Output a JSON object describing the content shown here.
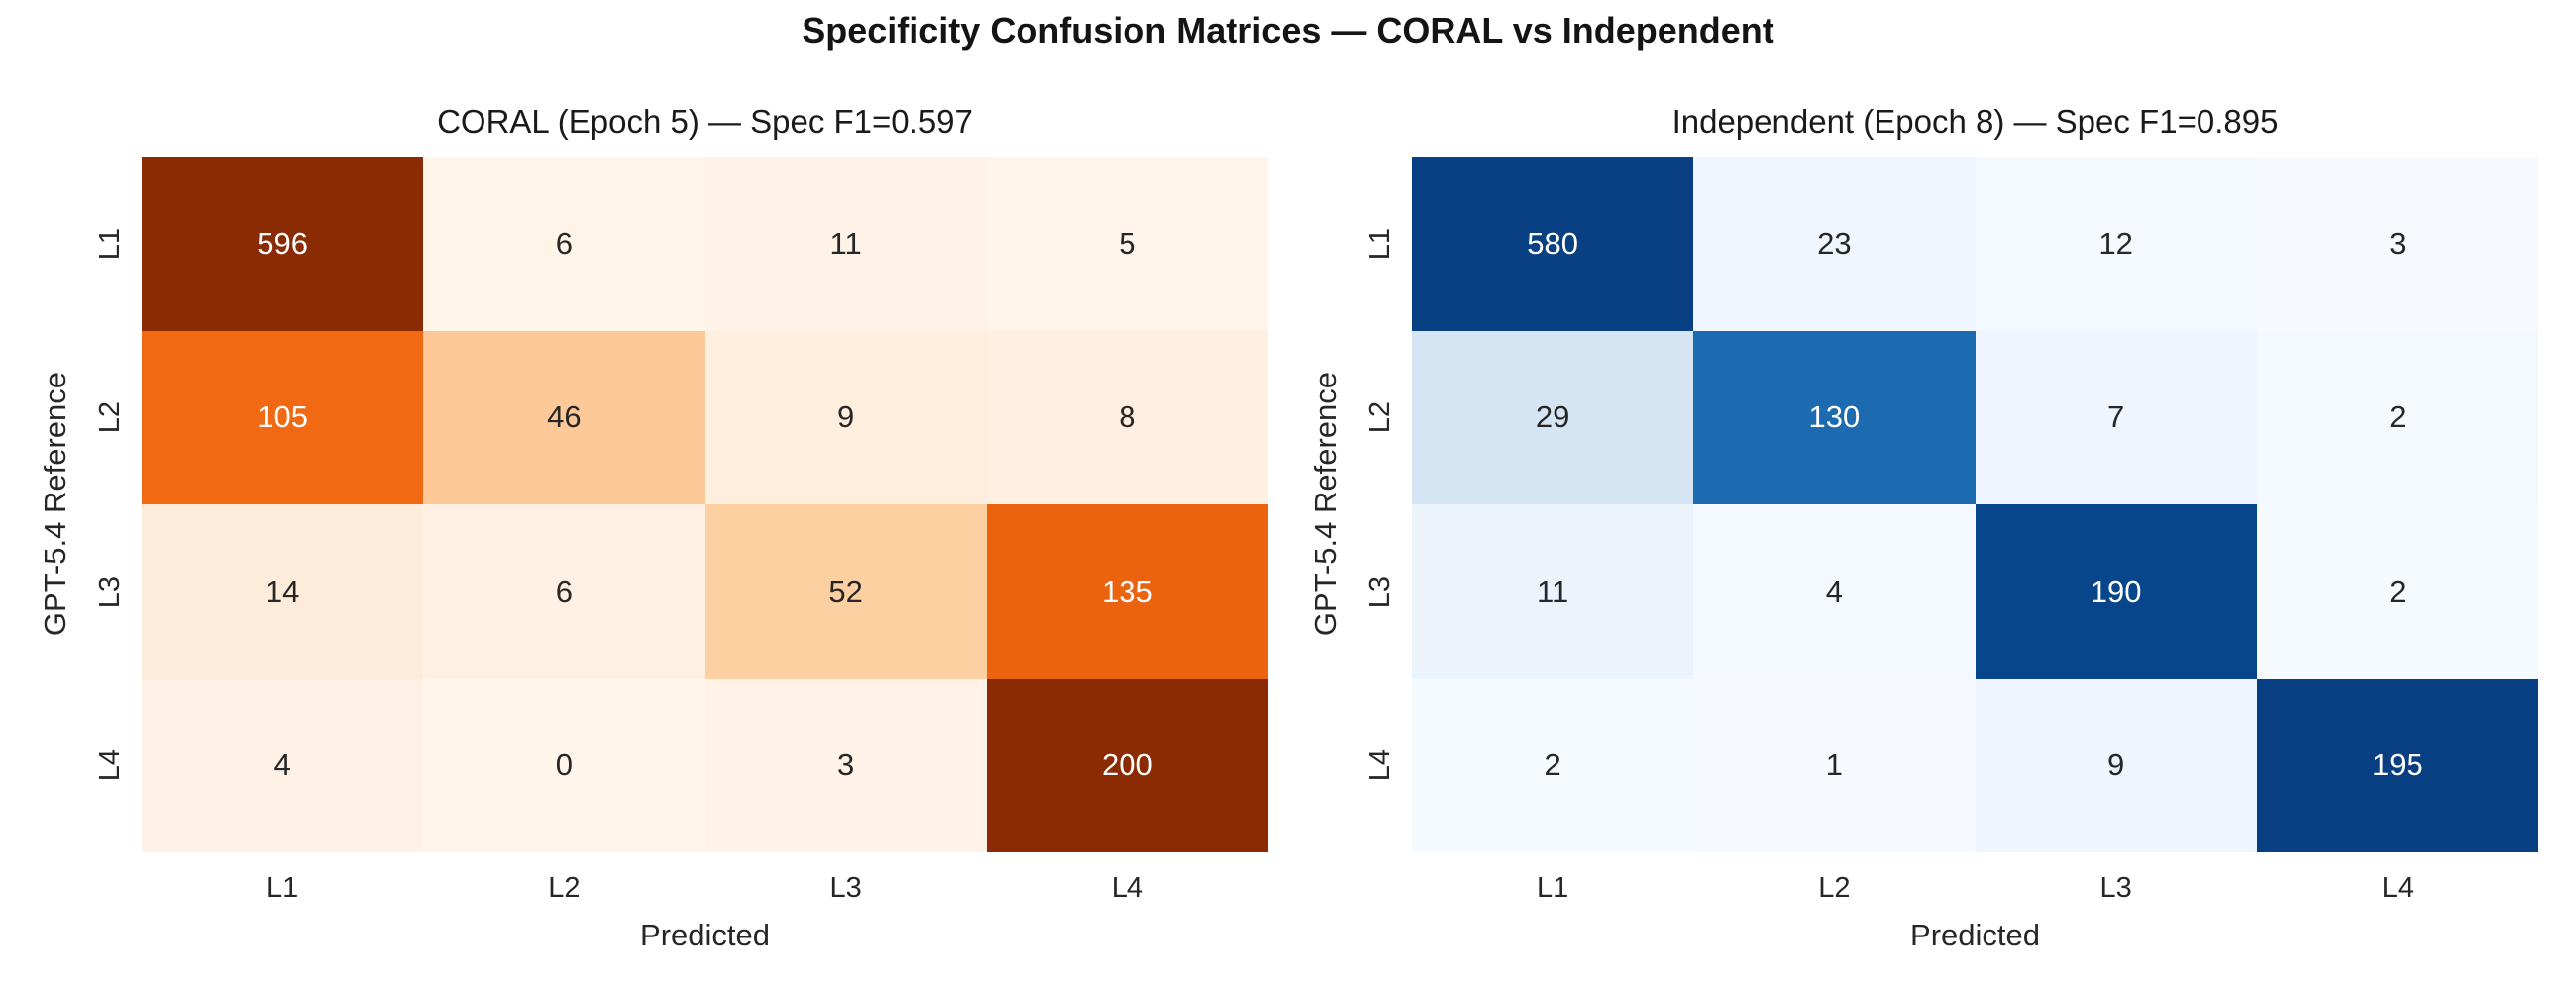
{
  "figure": {
    "title": "Specificity Confusion Matrices — CORAL vs Independent"
  },
  "chart_data": [
    {
      "type": "heatmap",
      "title": "CORAL (Epoch 5) — Spec F1=0.597",
      "colormap": "Oranges",
      "xlabel": "Predicted",
      "ylabel": "GPT-5.4 Reference",
      "x_categories": [
        "L1",
        "L2",
        "L3",
        "L4"
      ],
      "y_categories": [
        "L1",
        "L2",
        "L3",
        "L4"
      ],
      "values": [
        [
          596,
          6,
          11,
          5
        ],
        [
          105,
          46,
          9,
          8
        ],
        [
          14,
          6,
          52,
          135
        ],
        [
          4,
          0,
          3,
          200
        ]
      ],
      "annotation_note": "row-shaded confusion matrix, darker = larger share of row",
      "spec_f1": 0.597,
      "epoch": 5
    },
    {
      "type": "heatmap",
      "title": "Independent (Epoch 8) — Spec F1=0.895",
      "colormap": "Blues",
      "xlabel": "Predicted",
      "ylabel": "GPT-5.4 Reference",
      "x_categories": [
        "L1",
        "L2",
        "L3",
        "L4"
      ],
      "y_categories": [
        "L1",
        "L2",
        "L3",
        "L4"
      ],
      "values": [
        [
          580,
          23,
          12,
          3
        ],
        [
          29,
          130,
          7,
          2
        ],
        [
          11,
          4,
          190,
          2
        ],
        [
          2,
          1,
          9,
          195
        ]
      ],
      "annotation_note": "row-shaded confusion matrix, darker = larger share of row",
      "spec_f1": 0.895,
      "epoch": 8
    }
  ],
  "panels": [
    {
      "title": "CORAL (Epoch 5) — Spec F1=0.597",
      "ylabel": "GPT-5.4 Reference",
      "xlabel": "Predicted",
      "yticks": [
        "L1",
        "L2",
        "L3",
        "L4"
      ],
      "xticks": [
        "L1",
        "L2",
        "L3",
        "L4"
      ],
      "colors": [
        {
          "bg": "#8a2b04",
          "fg": "#ffffff"
        },
        {
          "bg": "#fff4e8",
          "fg": "#262626"
        },
        {
          "bg": "#fef3e6",
          "fg": "#262626"
        },
        {
          "bg": "#fff4e9",
          "fg": "#262626"
        },
        {
          "bg": "#f16913",
          "fg": "#ffffff"
        },
        {
          "bg": "#fdc998",
          "fg": "#262626"
        },
        {
          "bg": "#feeede",
          "fg": "#262626"
        },
        {
          "bg": "#feefe0",
          "fg": "#262626"
        },
        {
          "bg": "#feecdb",
          "fg": "#262626"
        },
        {
          "bg": "#fef1e4",
          "fg": "#262626"
        },
        {
          "bg": "#fdd0a1",
          "fg": "#262626"
        },
        {
          "bg": "#eb620f",
          "fg": "#ffffff"
        },
        {
          "bg": "#fef2e6",
          "fg": "#262626"
        },
        {
          "bg": "#fff5eb",
          "fg": "#262626"
        },
        {
          "bg": "#fff3e7",
          "fg": "#262626"
        },
        {
          "bg": "#8a2b04",
          "fg": "#ffffff"
        }
      ]
    },
    {
      "title": "Independent (Epoch 8) — Spec F1=0.895",
      "ylabel": "GPT-5.4 Reference",
      "xlabel": "Predicted",
      "yticks": [
        "L1",
        "L2",
        "L3",
        "L4"
      ],
      "xticks": [
        "L1",
        "L2",
        "L3",
        "L4"
      ],
      "colors": [
        {
          "bg": "#084083",
          "fg": "#ffffff"
        },
        {
          "bg": "#f0f6fd",
          "fg": "#262626"
        },
        {
          "bg": "#f3f9fe",
          "fg": "#262626"
        },
        {
          "bg": "#f6fafe",
          "fg": "#262626"
        },
        {
          "bg": "#d5e5f4",
          "fg": "#262626"
        },
        {
          "bg": "#1c6bb0",
          "fg": "#ffffff"
        },
        {
          "bg": "#eef5fc",
          "fg": "#262626"
        },
        {
          "bg": "#f4f9fe",
          "fg": "#262626"
        },
        {
          "bg": "#ecf4fb",
          "fg": "#262626"
        },
        {
          "bg": "#f3f9fe",
          "fg": "#262626"
        },
        {
          "bg": "#08468b",
          "fg": "#ffffff"
        },
        {
          "bg": "#f5fafe",
          "fg": "#262626"
        },
        {
          "bg": "#f5fafe",
          "fg": "#262626"
        },
        {
          "bg": "#f6fafe",
          "fg": "#262626"
        },
        {
          "bg": "#eef5fc",
          "fg": "#262626"
        },
        {
          "bg": "#083f82",
          "fg": "#ffffff"
        }
      ]
    }
  ]
}
